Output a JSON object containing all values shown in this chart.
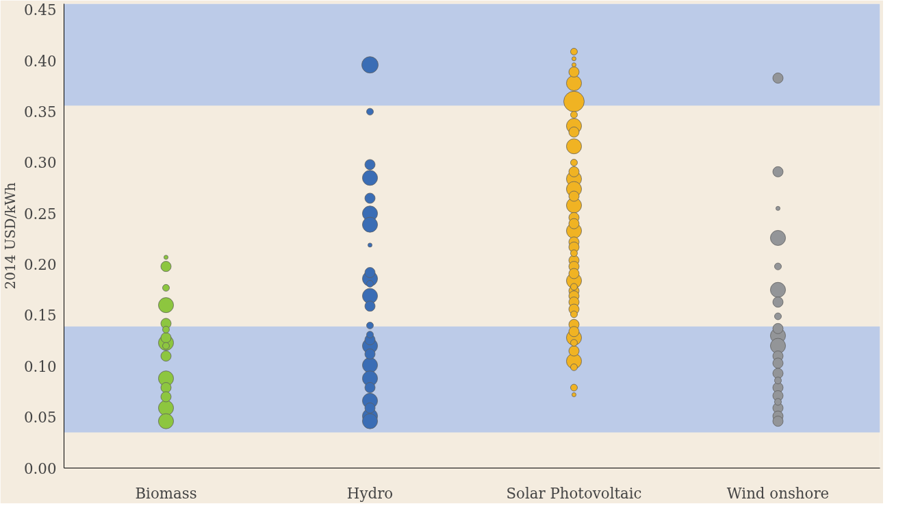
{
  "chart_data": {
    "type": "bubble",
    "ylabel": "2014 USD/kWh",
    "categories": [
      "Biomass",
      "Hydro",
      "Solar Photovoltaic",
      "Wind onshore"
    ],
    "ylim": [
      0,
      0.456
    ],
    "yticks": [
      {
        "value": 0,
        "label": "0.00"
      },
      {
        "value": 0.05,
        "label": "0.05"
      },
      {
        "value": 0.1,
        "label": "0.10"
      },
      {
        "value": 0.15,
        "label": "0.15"
      },
      {
        "value": 0.2,
        "label": "0.20"
      },
      {
        "value": 0.25,
        "label": "0.25"
      },
      {
        "value": 0.3,
        "label": "0.30"
      },
      {
        "value": 0.35,
        "label": "0.35"
      },
      {
        "value": 0.4,
        "label": "0.40"
      },
      {
        "value": 0.45,
        "label": "0.45"
      }
    ],
    "bands": [
      {
        "axis": "y",
        "from": 0.035,
        "to": 0.139,
        "label": null,
        "color": "#bccbe8"
      },
      {
        "axis": "y",
        "from": 0.356,
        "to": 0.456,
        "label": null,
        "color": "#bccbe8"
      }
    ],
    "series": [
      {
        "color": "#8dc63f",
        "x": [
          "Biomass",
          "Biomass",
          "Biomass",
          "Biomass",
          "Biomass",
          "Biomass",
          "Biomass",
          "Biomass",
          "Biomass",
          "Biomass",
          "Biomass",
          "Biomass",
          "Biomass",
          "Biomass",
          "Biomass"
        ],
        "values": [
          0.207,
          0.198,
          0.177,
          0.16,
          0.142,
          0.136,
          0.128,
          0.123,
          0.12,
          0.11,
          0.088,
          0.079,
          0.07,
          0.059,
          0.046
        ],
        "sizes": [
          0.04,
          0.25,
          0.11,
          0.54,
          0.25,
          0.11,
          0.25,
          0.54,
          0.11,
          0.25,
          0.54,
          0.25,
          0.25,
          0.54,
          0.54
        ]
      },
      {
        "color": "#3a6db5",
        "x": [
          "Hydro",
          "Hydro",
          "Hydro",
          "Hydro",
          "Hydro",
          "Hydro",
          "Hydro",
          "Hydro",
          "Hydro",
          "Hydro",
          "Hydro",
          "Hydro",
          "Hydro",
          "Hydro",
          "Hydro",
          "Hydro",
          "Hydro",
          "Hydro",
          "Hydro",
          "Hydro",
          "Hydro",
          "Hydro",
          "Hydro",
          "Hydro",
          "Hydro"
        ],
        "values": [
          0.396,
          0.35,
          0.298,
          0.285,
          0.265,
          0.25,
          0.239,
          0.219,
          0.192,
          0.186,
          0.181,
          0.169,
          0.159,
          0.14,
          0.131,
          0.126,
          0.12,
          0.112,
          0.101,
          0.088,
          0.079,
          0.066,
          0.059,
          0.051,
          0.046
        ],
        "sizes": [
          0.64,
          0.11,
          0.25,
          0.54,
          0.25,
          0.54,
          0.54,
          0.04,
          0.25,
          0.54,
          0.11,
          0.54,
          0.25,
          0.11,
          0.11,
          0.25,
          0.54,
          0.25,
          0.54,
          0.54,
          0.25,
          0.54,
          0.25,
          0.54,
          0.54
        ]
      },
      {
        "color": "#f0b323",
        "x": [
          "Solar Photovoltaic",
          "Solar Photovoltaic",
          "Solar Photovoltaic",
          "Solar Photovoltaic",
          "Solar Photovoltaic",
          "Solar Photovoltaic",
          "Solar Photovoltaic",
          "Solar Photovoltaic",
          "Solar Photovoltaic",
          "Solar Photovoltaic",
          "Solar Photovoltaic",
          "Solar Photovoltaic",
          "Solar Photovoltaic",
          "Solar Photovoltaic",
          "Solar Photovoltaic",
          "Solar Photovoltaic",
          "Solar Photovoltaic",
          "Solar Photovoltaic",
          "Solar Photovoltaic",
          "Solar Photovoltaic",
          "Solar Photovoltaic",
          "Solar Photovoltaic",
          "Solar Photovoltaic",
          "Solar Photovoltaic",
          "Solar Photovoltaic",
          "Solar Photovoltaic",
          "Solar Photovoltaic",
          "Solar Photovoltaic",
          "Solar Photovoltaic",
          "Solar Photovoltaic",
          "Solar Photovoltaic",
          "Solar Photovoltaic",
          "Solar Photovoltaic",
          "Solar Photovoltaic",
          "Solar Photovoltaic",
          "Solar Photovoltaic",
          "Solar Photovoltaic",
          "Solar Photovoltaic",
          "Solar Photovoltaic",
          "Solar Photovoltaic",
          "Solar Photovoltaic"
        ],
        "values": [
          0.409,
          0.402,
          0.396,
          0.389,
          0.378,
          0.36,
          0.347,
          0.336,
          0.33,
          0.316,
          0.3,
          0.291,
          0.284,
          0.274,
          0.267,
          0.258,
          0.246,
          0.24,
          0.233,
          0.222,
          0.217,
          0.211,
          0.204,
          0.198,
          0.191,
          0.184,
          0.178,
          0.174,
          0.169,
          0.163,
          0.156,
          0.151,
          0.141,
          0.134,
          0.128,
          0.123,
          0.115,
          0.105,
          0.099,
          0.079,
          0.072
        ],
        "sizes": [
          0.11,
          0.04,
          0.04,
          0.25,
          0.54,
          1,
          0.11,
          0.54,
          0.25,
          0.54,
          0.11,
          0.25,
          0.54,
          0.54,
          0.25,
          0.54,
          0.25,
          0.25,
          0.54,
          0.25,
          0.25,
          0.11,
          0.25,
          0.25,
          0.25,
          0.54,
          0.11,
          0.25,
          0.25,
          0.25,
          0.25,
          0.11,
          0.25,
          0.25,
          0.54,
          0.11,
          0.25,
          0.54,
          0.11,
          0.11,
          0.04
        ]
      },
      {
        "color": "#939598",
        "x": [
          "Wind onshore",
          "Wind onshore",
          "Wind onshore",
          "Wind onshore",
          "Wind onshore",
          "Wind onshore",
          "Wind onshore",
          "Wind onshore",
          "Wind onshore",
          "Wind onshore",
          "Wind onshore",
          "Wind onshore",
          "Wind onshore",
          "Wind onshore",
          "Wind onshore",
          "Wind onshore",
          "Wind onshore",
          "Wind onshore",
          "Wind onshore",
          "Wind onshore",
          "Wind onshore"
        ],
        "values": [
          0.383,
          0.291,
          0.255,
          0.226,
          0.198,
          0.175,
          0.163,
          0.149,
          0.137,
          0.13,
          0.12,
          0.11,
          0.103,
          0.093,
          0.086,
          0.079,
          0.071,
          0.065,
          0.059,
          0.051,
          0.046
        ],
        "sizes": [
          0.25,
          0.25,
          0.04,
          0.54,
          0.11,
          0.54,
          0.25,
          0.11,
          0.25,
          0.54,
          0.54,
          0.25,
          0.25,
          0.25,
          0.11,
          0.25,
          0.25,
          0.11,
          0.25,
          0.25,
          0.25
        ]
      }
    ]
  }
}
